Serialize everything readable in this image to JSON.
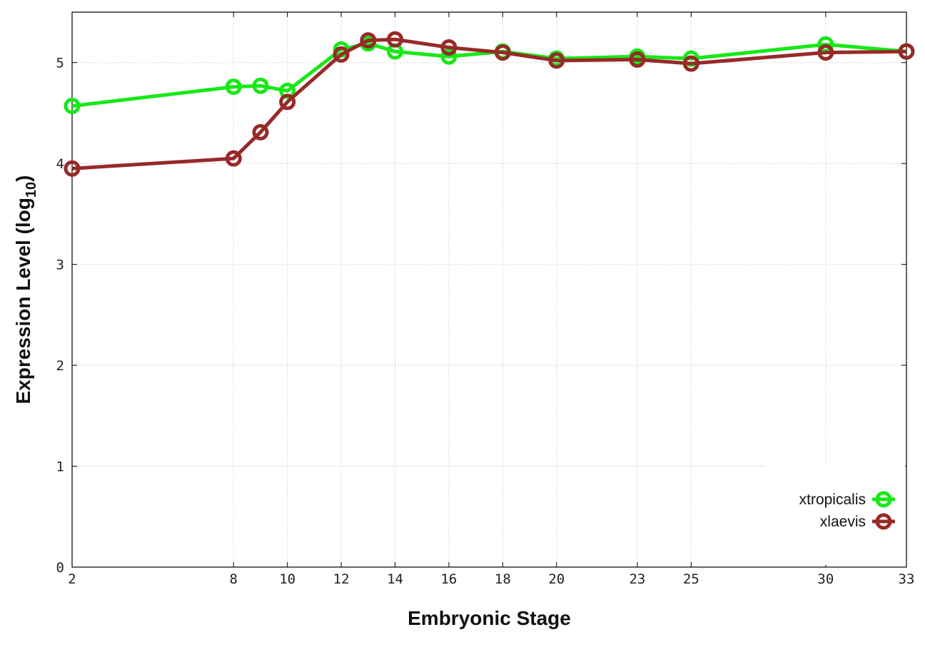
{
  "chart_data": {
    "type": "line",
    "xlabel": "Embryonic Stage",
    "ylabel_main": "Expression Level (log",
    "ylabel_sub": "10",
    "ylabel_close": ")",
    "x_ticks": [
      2,
      8,
      10,
      12,
      14,
      16,
      18,
      20,
      23,
      25,
      30,
      33
    ],
    "x_tick_labels": [
      "2",
      "8",
      "10",
      "12",
      "14",
      "16",
      "18",
      "20",
      "23",
      "25",
      "30",
      "33"
    ],
    "y_ticks": [
      0,
      1,
      2,
      3,
      4,
      5
    ],
    "y_tick_labels": [
      "0",
      "1",
      "2",
      "3",
      "4",
      "5"
    ],
    "xlim": [
      2,
      33
    ],
    "ylim": [
      0,
      5.5
    ],
    "grid": true,
    "legend_position": "bottom-right",
    "series": [
      {
        "name": "xtropicalis",
        "color": "#17e817",
        "x": [
          2,
          8,
          9,
          10,
          12,
          13,
          14,
          16,
          18,
          20,
          23,
          25,
          30,
          33
        ],
        "y": [
          4.57,
          4.76,
          4.77,
          4.72,
          5.13,
          5.19,
          5.11,
          5.06,
          5.11,
          5.04,
          5.06,
          5.04,
          5.18,
          5.11
        ]
      },
      {
        "name": "xlaevis",
        "color": "#962a28",
        "x": [
          2,
          8,
          9,
          10,
          12,
          13,
          14,
          16,
          18,
          20,
          23,
          25,
          30,
          33
        ],
        "y": [
          3.95,
          4.05,
          4.31,
          4.61,
          5.08,
          5.22,
          5.23,
          5.15,
          5.1,
          5.02,
          5.03,
          4.99,
          5.1,
          5.11
        ]
      }
    ]
  }
}
